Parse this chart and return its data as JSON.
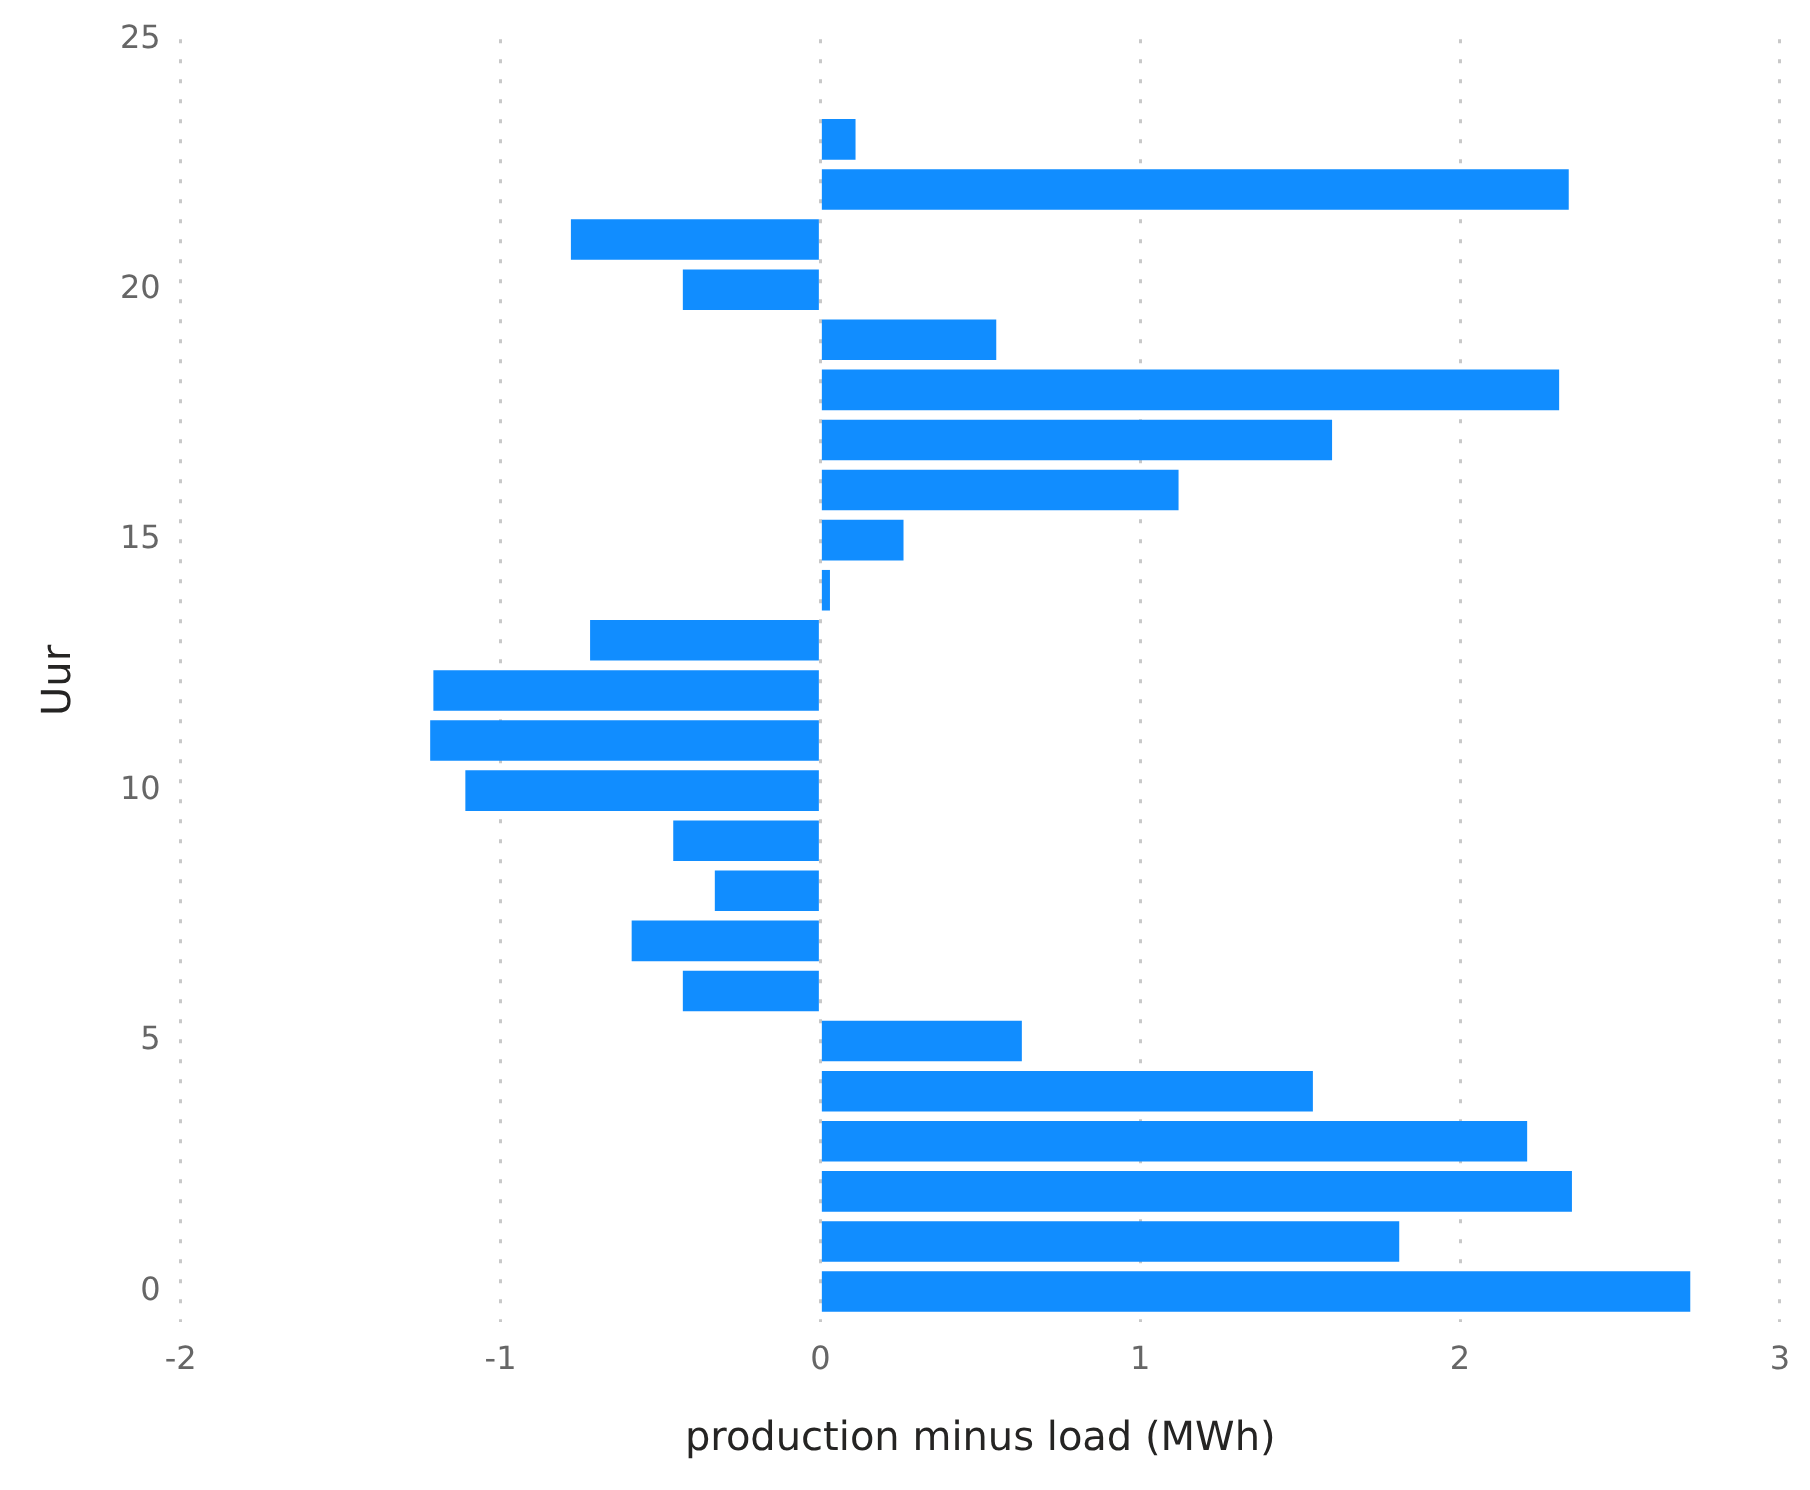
{
  "chart_data": {
    "type": "bar",
    "orientation": "horizontal",
    "xlabel": "production minus load (MWh)",
    "ylabel": "Uur",
    "x": [
      0,
      1,
      2,
      3,
      4,
      5,
      6,
      7,
      8,
      9,
      10,
      11,
      12,
      13,
      14,
      15,
      16,
      17,
      18,
      19,
      20,
      21,
      22,
      23
    ],
    "values": [
      2.72,
      1.81,
      2.35,
      2.21,
      1.54,
      0.63,
      -0.43,
      -0.59,
      -0.33,
      -0.46,
      -1.11,
      -1.22,
      -1.21,
      -0.72,
      0.03,
      0.26,
      1.12,
      1.6,
      2.31,
      0.55,
      -0.43,
      -0.78,
      2.34,
      0.11
    ],
    "color": "#118dff",
    "xlim": [
      -2,
      3
    ],
    "xticks": [
      -2,
      -1,
      0,
      1,
      2,
      3
    ],
    "ylim": [
      -0.6,
      25
    ],
    "yticks": [
      0,
      5,
      10,
      15,
      20,
      25
    ],
    "grid": "x"
  }
}
